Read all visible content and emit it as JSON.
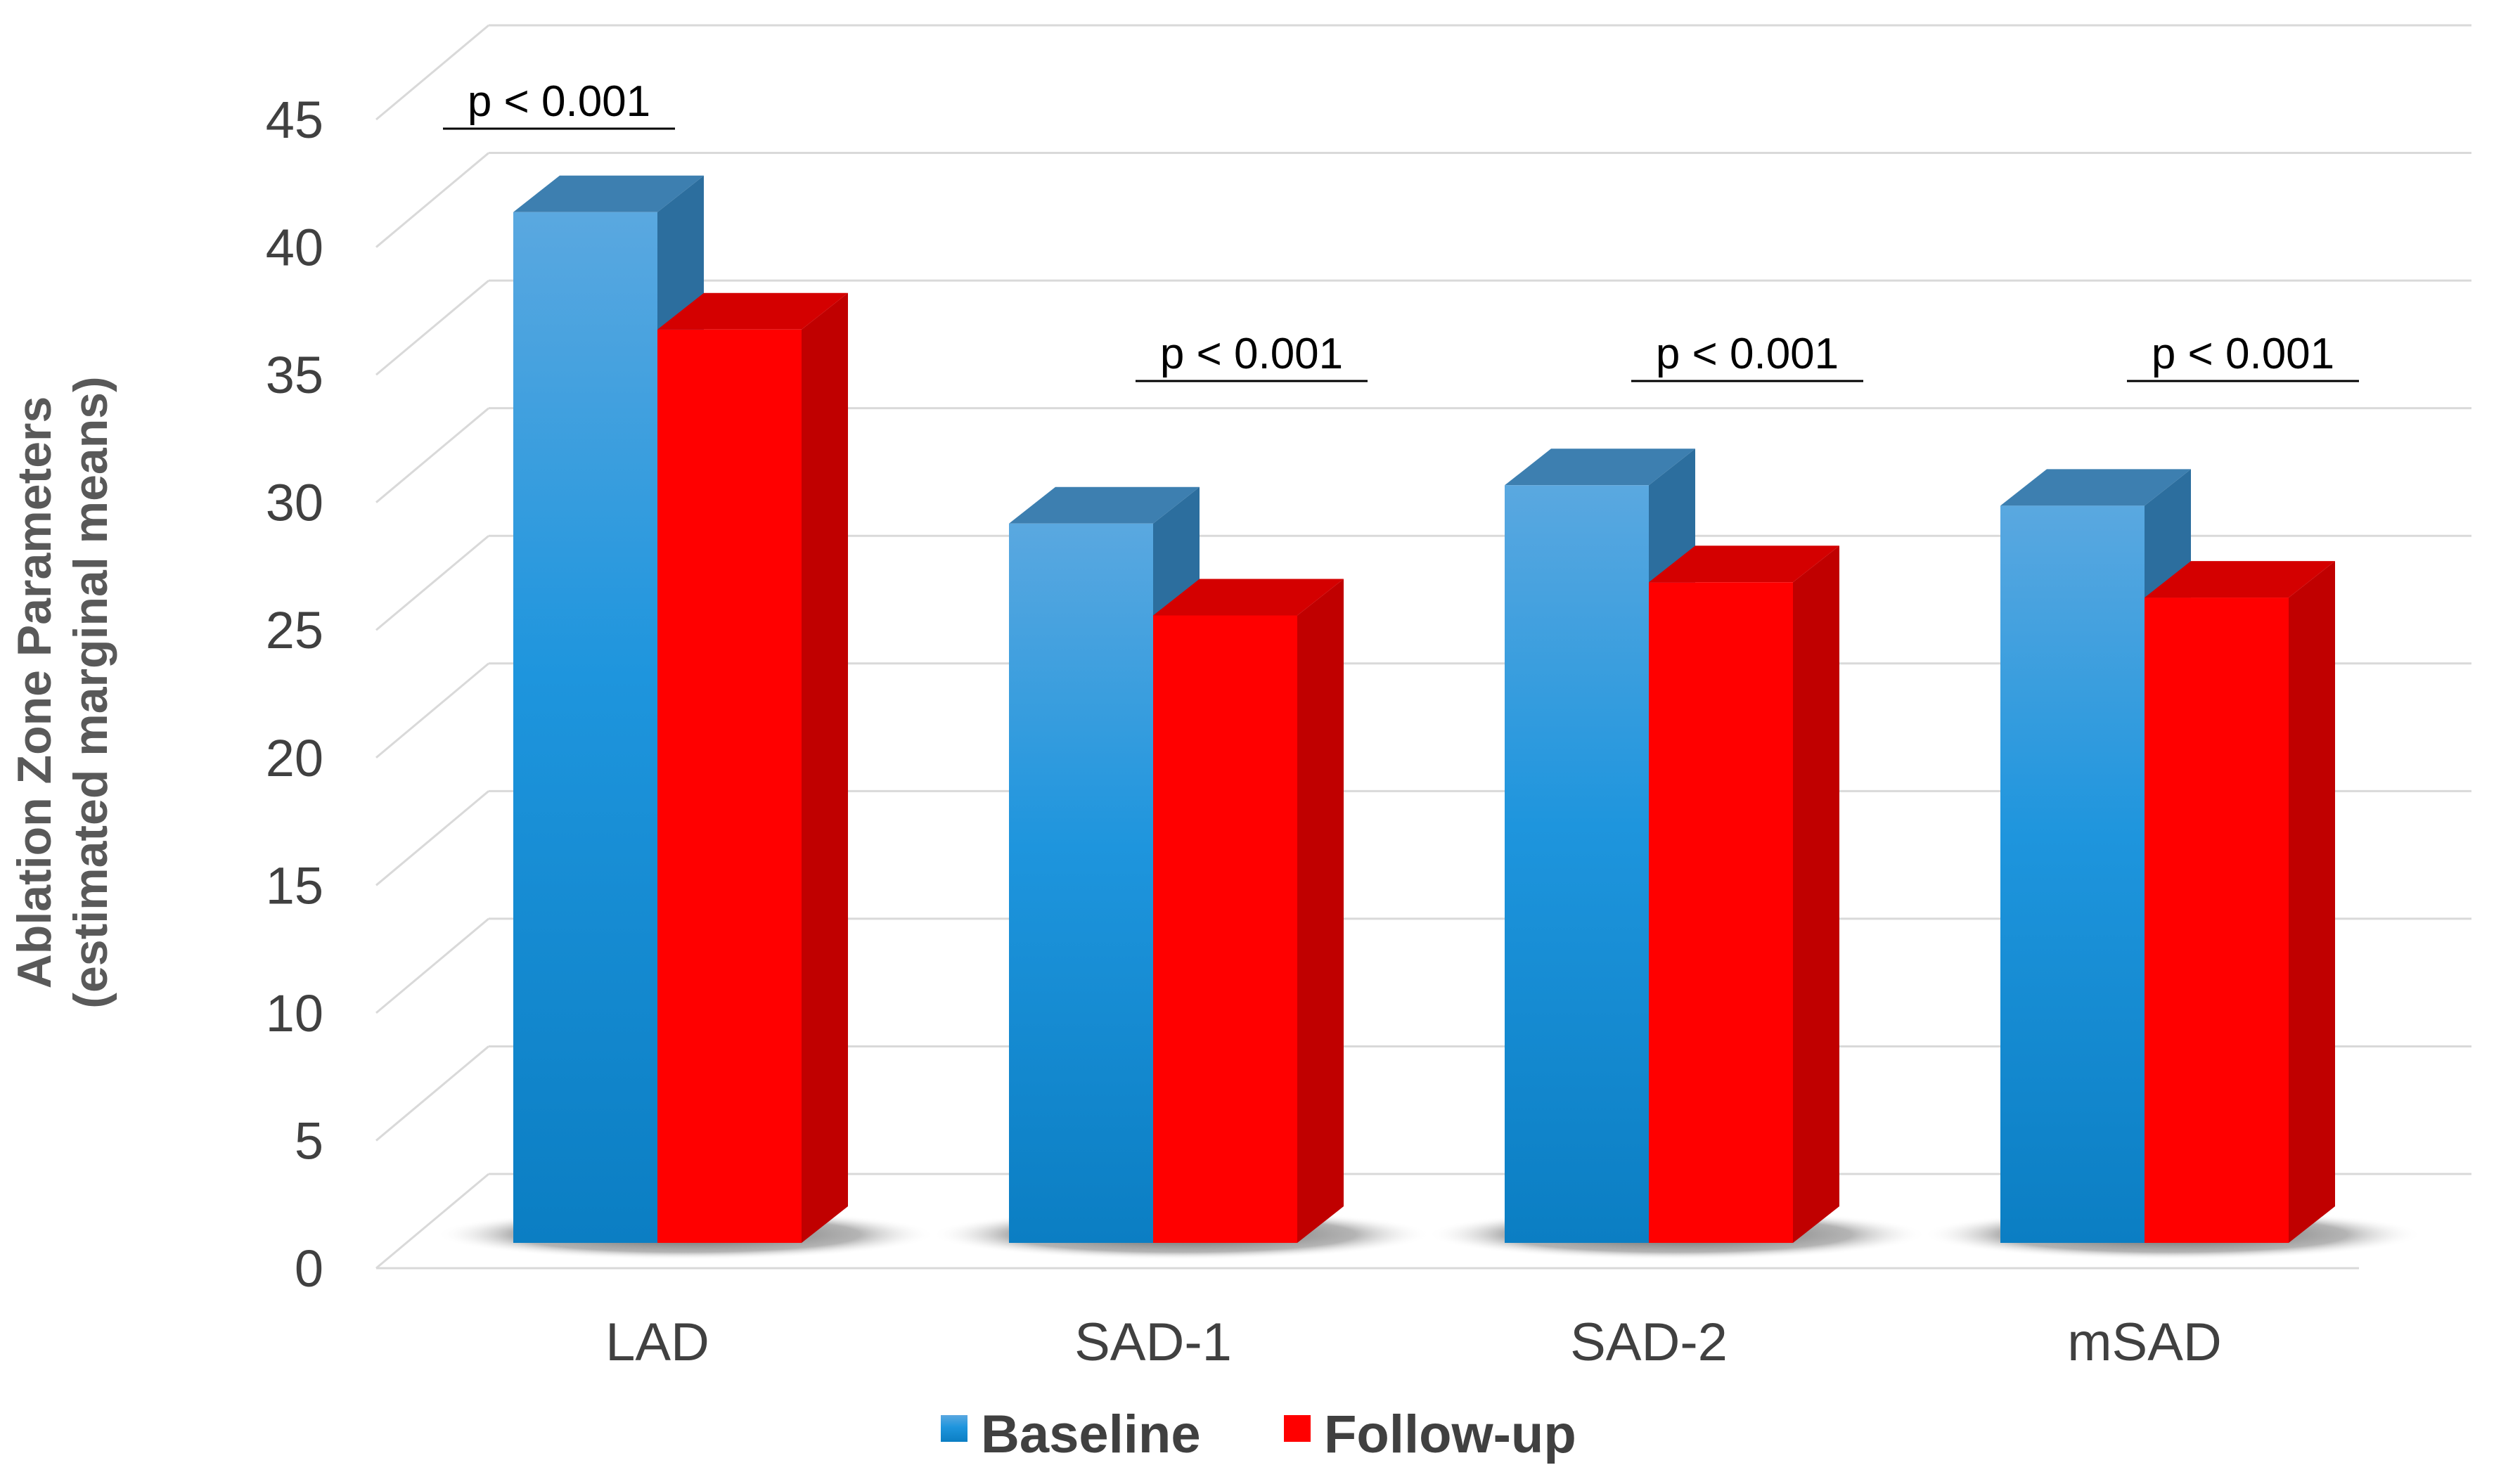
{
  "chart_data": {
    "type": "bar",
    "title": "",
    "xlabel": "",
    "ylabel": "Ablation Zone Parameters",
    "ylabel_sub": "(estimated marginal means)",
    "ylim": [
      0,
      45
    ],
    "yticks": [
      0,
      5,
      10,
      15,
      20,
      25,
      30,
      35,
      40,
      45
    ],
    "grid": true,
    "categories": [
      "LAD",
      "SAD-1",
      "SAD-2",
      "mSAD"
    ],
    "series": [
      {
        "name": "Baseline",
        "values": [
          40.6,
          28.4,
          29.9,
          29.1
        ],
        "color": "#1E8FD8",
        "top_color": "#3D7FB0",
        "side_color": "#2C6E9E"
      },
      {
        "name": "Follow-up",
        "values": [
          36.0,
          24.8,
          26.1,
          25.5
        ],
        "color": "#FF0000",
        "top_color": "#D40000",
        "side_color": "#C00000"
      }
    ],
    "annotations": [
      "p < 0.001",
      "p < 0.001",
      "p < 0.001",
      "p < 0.001"
    ],
    "legend_position": "bottom"
  }
}
